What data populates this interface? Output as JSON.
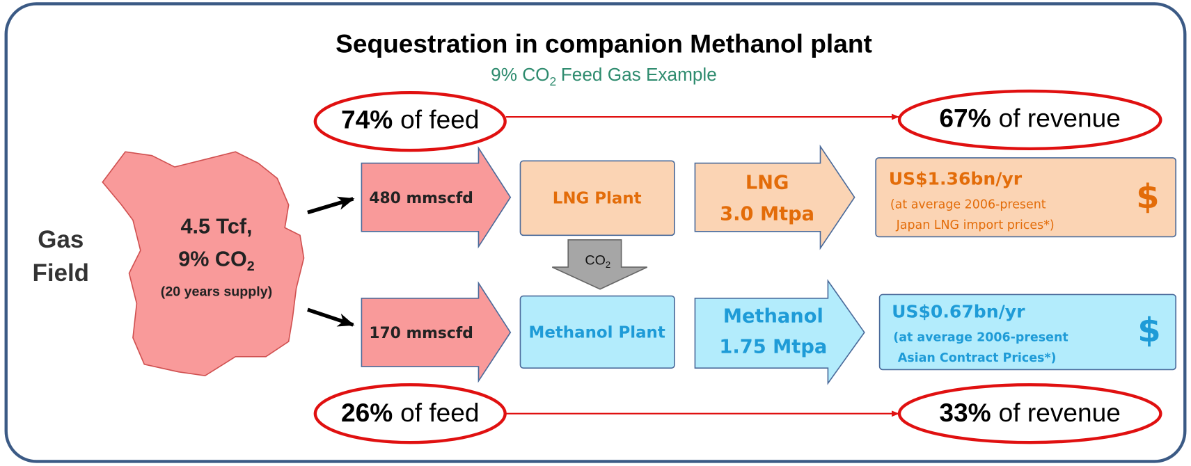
{
  "title": "Sequestration in companion Methanol plant",
  "subtitle": {
    "text": "9% CO",
    "sub": "2",
    "rest": "Feed Gas Example"
  },
  "top": {
    "feed": {
      "pct": "74%",
      "text": "of feed"
    },
    "revenue": {
      "pct": "67%",
      "text": "of revenue"
    }
  },
  "bottom": {
    "feed": {
      "pct": "26%",
      "text": "of feed"
    },
    "revenue": {
      "pct": "33%",
      "text": "of revenue"
    }
  },
  "field": {
    "label": [
      "Gas",
      "Field"
    ],
    "reserve": "4.5 Tcf,",
    "co2": {
      "text": "9% CO",
      "sub": "2"
    },
    "supply": "(20 years supply)"
  },
  "co2": {
    "text": "CO",
    "sub": "2"
  },
  "lng": {
    "flow": "480 mmscfd",
    "plant": "LNG Plant",
    "product": [
      "LNG",
      "3.0 Mtpa"
    ],
    "revenue": {
      "amount": "US$1.36bn/yr",
      "note": [
        "(at average 2006-present",
        "Japan LNG import prices*)"
      ],
      "symbol": "$"
    }
  },
  "methanol": {
    "flow": "170 mmscfd",
    "plant": "Methanol Plant",
    "product": [
      "Methanol",
      "1.75 Mtpa"
    ],
    "revenue": {
      "amount": "US$0.67bn/yr",
      "note": [
        "(at average 2006-present",
        "Asian Contract Prices*)"
      ],
      "symbol": "$"
    }
  }
}
